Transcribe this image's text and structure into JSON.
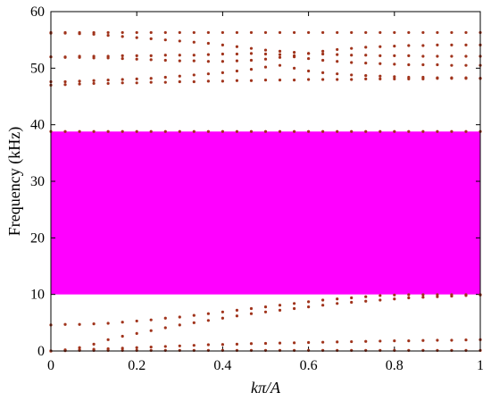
{
  "chart_data": {
    "type": "scatter",
    "xlabel": "kπ/A",
    "ylabel": "Frequency (kHz)",
    "xlim": [
      0,
      1
    ],
    "ylim": [
      0,
      60
    ],
    "x_ticks": [
      "0",
      "0.2",
      "0.4",
      "0.6",
      "0.8",
      "1"
    ],
    "y_ticks": [
      "0",
      "10",
      "20",
      "30",
      "40",
      "50",
      "60"
    ],
    "band_gap": {
      "y_from": 10,
      "y_to": 38.8,
      "color": "#ff00ff"
    },
    "point_color": "#a0341c",
    "x": [
      0,
      0.0333,
      0.0667,
      0.1,
      0.1333,
      0.1667,
      0.2,
      0.2333,
      0.2667,
      0.3,
      0.3333,
      0.3667,
      0.4,
      0.4333,
      0.4667,
      0.5,
      0.5333,
      0.5667,
      0.6,
      0.6333,
      0.6667,
      0.7,
      0.7333,
      0.7667,
      0.8,
      0.8333,
      0.8667,
      0.9,
      0.9333,
      0.9667,
      1
    ],
    "series": [
      {
        "values": [
          0,
          0.05,
          0.1,
          0.1,
          0.1,
          0.1,
          0.1,
          0.1,
          0.1,
          0.1,
          0.1,
          0.1,
          0.1,
          0.1,
          0.1,
          0.1,
          0.1,
          0.1,
          0.1,
          0.1,
          0.1,
          0.1,
          0.1,
          0.1,
          0.1,
          0.1,
          0.1,
          0.1,
          0.1,
          0.1,
          0.1
        ]
      },
      {
        "values": [
          0,
          0.1,
          0.2,
          0.3,
          0.4,
          0.5,
          0.6,
          0.7,
          0.8,
          0.9,
          1.0,
          1.1,
          1.15,
          1.2,
          1.3,
          1.35,
          1.4,
          1.45,
          1.5,
          1.55,
          1.6,
          1.65,
          1.7,
          1.75,
          1.8,
          1.8,
          1.85,
          1.9,
          1.9,
          1.95,
          2.0
        ]
      },
      {
        "values": [
          0,
          0.2,
          0.6,
          1.2,
          2.0,
          2.6,
          3.1,
          3.6,
          4.1,
          4.6,
          5.0,
          5.4,
          5.8,
          6.2,
          6.6,
          6.9,
          7.2,
          7.5,
          7.8,
          8.1,
          8.4,
          8.6,
          8.8,
          9.0,
          9.2,
          9.4,
          9.5,
          9.6,
          9.7,
          9.8,
          9.9
        ]
      },
      {
        "values": [
          4.6,
          4.7,
          4.7,
          4.8,
          4.9,
          5.1,
          5.3,
          5.5,
          5.8,
          6.0,
          6.3,
          6.6,
          6.9,
          7.2,
          7.5,
          7.8,
          8.1,
          8.4,
          8.7,
          9.0,
          9.2,
          9.4,
          9.6,
          9.8,
          9.9,
          9.95,
          9.95,
          9.95,
          9.95,
          9.95,
          9.95
        ]
      },
      {
        "values": [
          38.8,
          38.8,
          38.8,
          38.8,
          38.8,
          38.8,
          38.8,
          38.8,
          38.8,
          38.8,
          38.8,
          38.8,
          38.8,
          38.8,
          38.8,
          38.8,
          38.8,
          38.8,
          38.8,
          38.8,
          38.8,
          38.8,
          38.8,
          38.8,
          38.8,
          38.8,
          38.8,
          38.8,
          38.8,
          38.8,
          38.8
        ]
      },
      {
        "values": [
          47.0,
          47.1,
          47.2,
          47.3,
          47.3,
          47.4,
          47.4,
          47.5,
          47.5,
          47.6,
          47.6,
          47.7,
          47.7,
          47.8,
          47.8,
          47.9,
          47.9,
          47.9,
          48.0,
          48.0,
          48.0,
          48.0,
          48.1,
          48.1,
          48.1,
          48.1,
          48.1,
          48.2,
          48.2,
          48.2,
          48.2
        ]
      },
      {
        "values": [
          47.6,
          47.6,
          47.7,
          47.8,
          47.9,
          48.0,
          48.1,
          48.2,
          48.4,
          48.6,
          48.8,
          49.0,
          49.2,
          49.5,
          49.8,
          50.2,
          50.5,
          50.0,
          49.5,
          49.2,
          49.0,
          48.8,
          48.7,
          48.6,
          48.5,
          48.4,
          48.4,
          48.3,
          48.3,
          48.3,
          48.2
        ]
      },
      {
        "values": [
          52.0,
          51.9,
          51.9,
          51.8,
          51.8,
          51.7,
          51.6,
          51.5,
          51.4,
          51.3,
          51.3,
          51.2,
          51.2,
          51.3,
          51.4,
          51.6,
          51.9,
          52.2,
          52.6,
          53.0,
          53.3,
          53.5,
          53.7,
          53.8,
          53.9,
          54.0,
          54.0,
          54.1,
          54.1,
          54.1,
          54.1
        ]
      },
      {
        "values": [
          52.0,
          52.0,
          52.1,
          52.1,
          52.1,
          52.2,
          52.2,
          52.2,
          52.3,
          52.3,
          52.3,
          52.4,
          52.5,
          52.5,
          52.6,
          52.5,
          52.4,
          52.0,
          51.7,
          51.4,
          51.2,
          51.0,
          50.9,
          50.8,
          50.7,
          50.6,
          50.6,
          50.6,
          50.5,
          50.5,
          50.5
        ]
      },
      {
        "values": [
          56.2,
          56.2,
          56.1,
          56.0,
          55.8,
          55.6,
          55.4,
          55.2,
          55.0,
          54.8,
          54.6,
          54.4,
          54.1,
          53.8,
          53.5,
          53.2,
          53.0,
          52.8,
          52.6,
          52.5,
          52.4,
          52.3,
          52.3,
          52.2,
          52.2,
          52.2,
          52.1,
          52.1,
          52.1,
          52.1,
          52.1
        ]
      },
      {
        "values": [
          56.3,
          56.3,
          56.3,
          56.3,
          56.3,
          56.3,
          56.3,
          56.3,
          56.3,
          56.3,
          56.3,
          56.3,
          56.3,
          56.3,
          56.3,
          56.3,
          56.3,
          56.3,
          56.3,
          56.3,
          56.3,
          56.3,
          56.3,
          56.3,
          56.3,
          56.3,
          56.3,
          56.3,
          56.3,
          56.3,
          56.3
        ]
      }
    ]
  }
}
